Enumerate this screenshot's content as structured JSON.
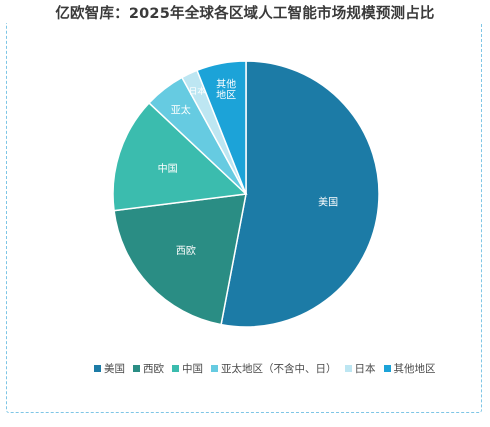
{
  "title": "亿欧智库：2025年全球各区域人工智能市场规模预测占比",
  "chart_data": {
    "type": "pie",
    "title": "亿欧智库：2025年全球各区域人工智能市场规模预测占比",
    "start_angle_deg": 0,
    "direction": "clockwise",
    "legend_position": "bottom",
    "slices": [
      {
        "label": "美国",
        "legend": "美国",
        "value": 53,
        "color": "#1c7ba6"
      },
      {
        "label": "西欧",
        "legend": "西欧",
        "value": 20,
        "color": "#2a8d84"
      },
      {
        "label": "中国",
        "legend": "中国",
        "value": 14,
        "color": "#3bbcae"
      },
      {
        "label": "亚太",
        "legend": "亚太地区（不含中、日）",
        "value": 5,
        "color": "#66cbe1"
      },
      {
        "label": "日本",
        "legend": "日本",
        "value": 2,
        "color": "#bde6f2"
      },
      {
        "label": "其他\n地区",
        "legend": "其他地区",
        "value": 6,
        "color": "#1ca3d8"
      }
    ]
  }
}
